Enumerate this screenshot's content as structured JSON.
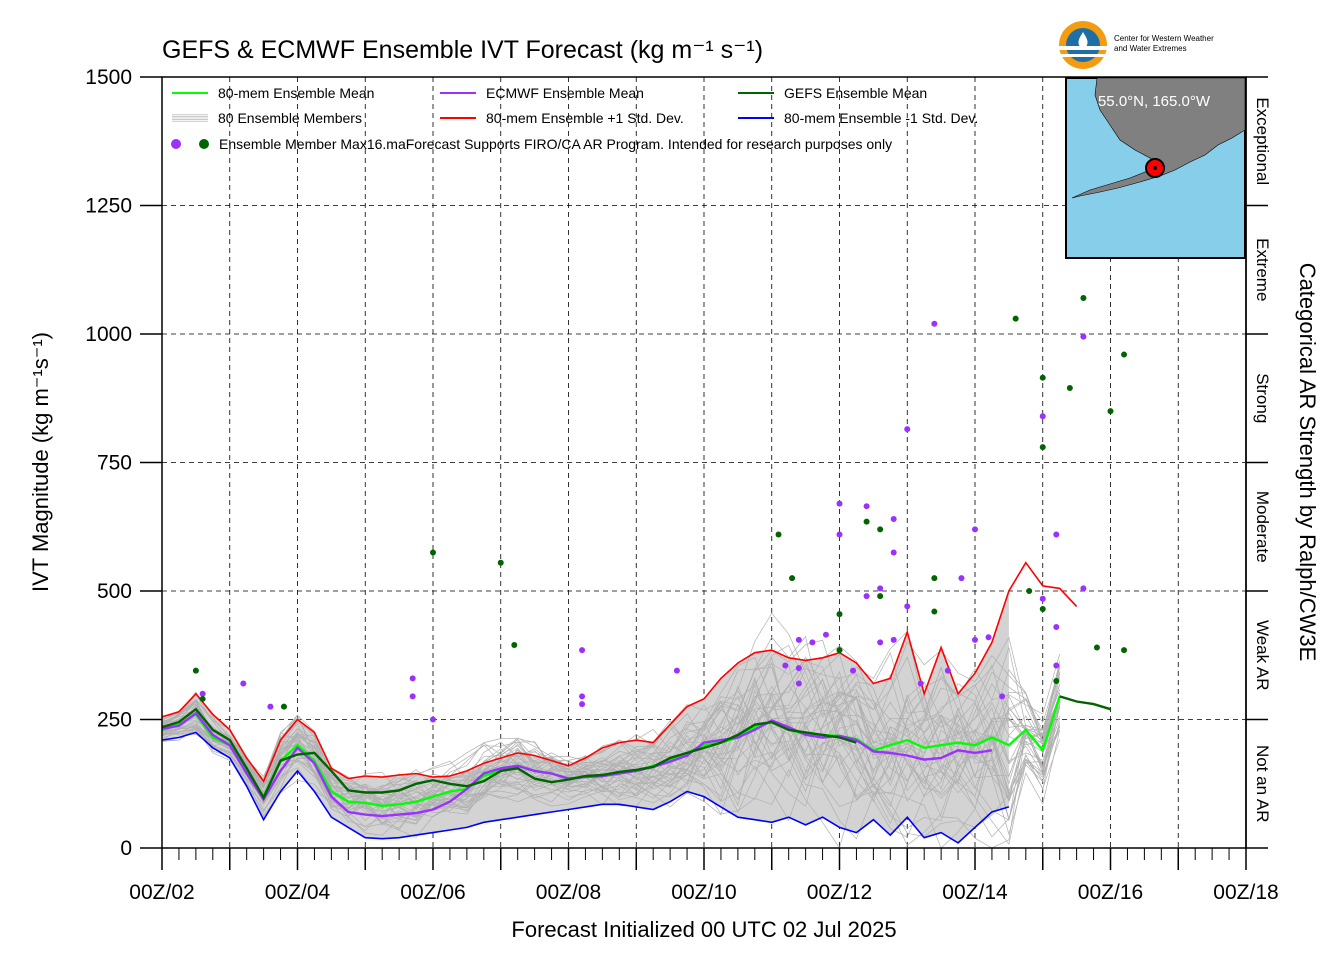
{
  "chart_data": {
    "type": "line",
    "title": "GEFS & ECMWF Ensemble IVT Forecast (kg m⁻¹ s⁻¹)",
    "ylabel": "IVT Magnitude (kg m⁻¹s⁻¹)",
    "xlabel": "Forecast Initialized 00 UTC 02 Jul 2025",
    "right_label": "Categorical AR Strength by Ralph/CW3E",
    "ylim": [
      0,
      1500
    ],
    "xlim_days": [
      0,
      16
    ],
    "y_ticks": [
      0,
      250,
      500,
      750,
      1000,
      1250,
      1500
    ],
    "x_ticks": [
      "00Z/02",
      "00Z/04",
      "00Z/06",
      "00Z/08",
      "00Z/10",
      "00Z/12",
      "00Z/14",
      "00Z/16",
      "00Z/18"
    ],
    "grid": true,
    "categories_band": [
      {
        "label": "Exceptional",
        "from": 1250,
        "to": 1500
      },
      {
        "label": "Extreme",
        "from": 1000,
        "to": 1250
      },
      {
        "label": "Strong",
        "from": 750,
        "to": 1000
      },
      {
        "label": "Moderate",
        "from": 500,
        "to": 750
      },
      {
        "label": "Weak AR",
        "from": 250,
        "to": 500
      },
      {
        "label": "Not an AR",
        "from": 0,
        "to": 250
      }
    ],
    "legend": [
      {
        "label": "80-mem Ensemble Mean",
        "color": "#00ff00"
      },
      {
        "label": "ECMWF Ensemble Mean",
        "color": "#9b30ff"
      },
      {
        "label": "GEFS Ensemble Mean",
        "color": "#006400"
      },
      {
        "label": "80 Ensemble Members",
        "color": "#aaaaaa"
      },
      {
        "label": "80-mem Ensemble +1 Std. Dev.",
        "color": "#ff0000"
      },
      {
        "label": "80-mem Ensemble -1 Std. Dev.",
        "color": "#0000ff"
      },
      {
        "label": "Ensemble Member Max16.maForecast Supports FIRO/CA AR Program. Intended for research purposes only",
        "color": "#9b30ff"
      }
    ],
    "x_days": [
      0,
      0.25,
      0.5,
      0.75,
      1,
      1.25,
      1.5,
      1.75,
      2,
      2.25,
      2.5,
      2.75,
      3,
      3.25,
      3.5,
      3.75,
      4,
      4.25,
      4.5,
      4.75,
      5,
      5.25,
      5.5,
      5.75,
      6,
      6.25,
      6.5,
      6.75,
      7,
      7.25,
      7.5,
      7.75,
      8,
      8.25,
      8.5,
      8.75,
      9,
      9.25,
      9.5,
      9.75,
      10,
      10.25,
      10.5,
      10.75,
      11,
      11.25,
      11.5,
      11.75,
      12,
      12.25,
      12.5,
      12.75,
      13,
      13.25,
      13.5,
      13.75,
      14,
      14.25,
      14.5,
      14.75,
      15,
      15.25,
      15.5,
      15.75,
      16
    ],
    "series": [
      {
        "name": "80-mem Ensemble Mean",
        "color": "#00ff00",
        "values": [
          230,
          240,
          260,
          215,
          200,
          150,
          100,
          170,
          200,
          170,
          110,
          90,
          88,
          82,
          85,
          90,
          100,
          110,
          115,
          140,
          150,
          160,
          150,
          145,
          135,
          138,
          140,
          145,
          150,
          160,
          170,
          185,
          200,
          205,
          215,
          235,
          245,
          230,
          222,
          220,
          218,
          212,
          190,
          200,
          210,
          195,
          200,
          205,
          200,
          215,
          200,
          230,
          190,
          295,
          null,
          null,
          null,
          null,
          null,
          null,
          null,
          null,
          null,
          null,
          null
        ]
      },
      {
        "name": "ECMWF Ensemble Mean",
        "color": "#9b30ff",
        "values": [
          232,
          238,
          262,
          220,
          200,
          145,
          95,
          150,
          195,
          165,
          100,
          70,
          65,
          62,
          65,
          68,
          75,
          90,
          115,
          145,
          155,
          160,
          150,
          145,
          135,
          138,
          140,
          145,
          150,
          158,
          168,
          180,
          205,
          210,
          215,
          230,
          248,
          235,
          220,
          215,
          218,
          210,
          188,
          185,
          180,
          172,
          175,
          190,
          185,
          190,
          null,
          null,
          null,
          null,
          null,
          null,
          null,
          null,
          null,
          null,
          null,
          null,
          null,
          null,
          null
        ]
      },
      {
        "name": "GEFS Ensemble Mean",
        "color": "#006400",
        "values": [
          235,
          245,
          270,
          230,
          210,
          155,
          98,
          170,
          182,
          185,
          150,
          112,
          108,
          108,
          112,
          125,
          132,
          125,
          120,
          130,
          150,
          155,
          135,
          128,
          133,
          140,
          142,
          148,
          152,
          158,
          175,
          185,
          195,
          205,
          220,
          240,
          245,
          230,
          225,
          220,
          215,
          205,
          null,
          null,
          null,
          null,
          null,
          null,
          null,
          null,
          null,
          null,
          null,
          295,
          285,
          280,
          270,
          null,
          null,
          null,
          null,
          null,
          null,
          null,
          null
        ]
      },
      {
        "name": "80-mem Ensemble +1 Std. Dev.",
        "color": "#ff0000",
        "values": [
          255,
          265,
          300,
          260,
          230,
          175,
          130,
          210,
          250,
          225,
          155,
          135,
          140,
          138,
          142,
          145,
          138,
          140,
          150,
          165,
          175,
          185,
          180,
          170,
          160,
          175,
          195,
          205,
          210,
          205,
          240,
          275,
          290,
          330,
          360,
          380,
          385,
          370,
          365,
          370,
          380,
          360,
          320,
          330,
          420,
          300,
          390,
          300,
          340,
          400,
          500,
          555,
          510,
          505,
          470,
          null,
          null,
          null,
          null,
          null,
          null,
          null,
          null,
          null,
          null
        ]
      },
      {
        "name": "80-mem Ensemble -1 Std. Dev.",
        "color": "#0000ff",
        "values": [
          210,
          215,
          225,
          195,
          175,
          120,
          55,
          110,
          150,
          110,
          60,
          40,
          20,
          18,
          20,
          25,
          30,
          35,
          40,
          50,
          55,
          60,
          65,
          70,
          75,
          80,
          85,
          85,
          80,
          75,
          90,
          110,
          100,
          80,
          60,
          55,
          50,
          60,
          45,
          60,
          40,
          30,
          55,
          25,
          60,
          20,
          30,
          10,
          40,
          70,
          80,
          null,
          null,
          null,
          null,
          null,
          null,
          null,
          null,
          null,
          null,
          null,
          null,
          null,
          null
        ]
      }
    ],
    "markers_ecmwf": [
      [
        0.6,
        300
      ],
      [
        1.2,
        320
      ],
      [
        1.6,
        275
      ],
      [
        3.7,
        330
      ],
      [
        3.7,
        295
      ],
      [
        4.0,
        250
      ],
      [
        6.2,
        385
      ],
      [
        6.2,
        295
      ],
      [
        6.2,
        280
      ],
      [
        7.6,
        345
      ],
      [
        9.2,
        355
      ],
      [
        9.4,
        350
      ],
      [
        9.4,
        405
      ],
      [
        9.4,
        320
      ],
      [
        9.6,
        400
      ],
      [
        9.8,
        415
      ],
      [
        10.0,
        670
      ],
      [
        10.0,
        610
      ],
      [
        10.2,
        345
      ],
      [
        10.4,
        490
      ],
      [
        10.4,
        665
      ],
      [
        10.6,
        505
      ],
      [
        10.6,
        400
      ],
      [
        10.8,
        640
      ],
      [
        10.8,
        575
      ],
      [
        10.8,
        405
      ],
      [
        11.0,
        470
      ],
      [
        11.0,
        815
      ],
      [
        11.2,
        320
      ],
      [
        11.4,
        1020
      ],
      [
        11.6,
        345
      ],
      [
        11.8,
        525
      ],
      [
        12.0,
        620
      ],
      [
        12.0,
        405
      ],
      [
        12.2,
        410
      ],
      [
        12.4,
        295
      ],
      [
        13.0,
        840
      ],
      [
        13.0,
        485
      ],
      [
        13.2,
        610
      ],
      [
        13.2,
        430
      ],
      [
        13.2,
        355
      ],
      [
        13.6,
        505
      ],
      [
        13.6,
        995
      ]
    ],
    "markers_gefs": [
      [
        0.5,
        345
      ],
      [
        0.6,
        290
      ],
      [
        1.8,
        275
      ],
      [
        4.0,
        575
      ],
      [
        5.0,
        555
      ],
      [
        5.2,
        395
      ],
      [
        9.1,
        610
      ],
      [
        9.3,
        525
      ],
      [
        10.0,
        455
      ],
      [
        10.0,
        385
      ],
      [
        10.4,
        635
      ],
      [
        10.6,
        620
      ],
      [
        10.6,
        490
      ],
      [
        11.4,
        525
      ],
      [
        11.4,
        460
      ],
      [
        12.6,
        1030
      ],
      [
        12.8,
        500
      ],
      [
        13.0,
        915
      ],
      [
        13.0,
        780
      ],
      [
        13.0,
        465
      ],
      [
        13.2,
        325
      ],
      [
        13.4,
        895
      ],
      [
        13.6,
        1070
      ],
      [
        13.8,
        390
      ],
      [
        14.0,
        850
      ],
      [
        14.2,
        960
      ],
      [
        14.2,
        385
      ]
    ],
    "members_count": 80,
    "inset": {
      "label": "55.0°N, 165.0°W",
      "water_color": "#87ceeb",
      "land_color": "#808080"
    }
  },
  "logo": {
    "org": "Center for Western Weather and Water Extremes",
    "line1": "Center for Western Weather",
    "line2": "and Water Extremes"
  },
  "colors": {
    "spread_fill": "#d3d3d3",
    "members": "#b0b0b0"
  }
}
